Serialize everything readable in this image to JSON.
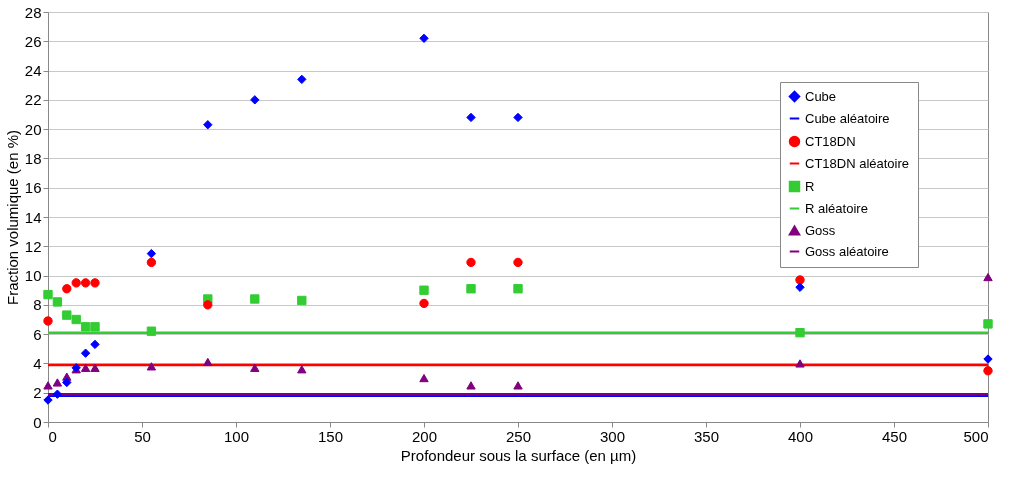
{
  "chart_data": {
    "type": "scatter",
    "xlabel": "Profondeur sous la surface (en µm)",
    "ylabel": "Fraction volumique (en %)",
    "xlim": [
      0,
      500
    ],
    "xticks": [
      0,
      50,
      100,
      150,
      200,
      250,
      300,
      350,
      400,
      450,
      500
    ],
    "ylim": [
      0,
      28
    ],
    "yticks": [
      0,
      2,
      4,
      6,
      8,
      10,
      12,
      14,
      16,
      18,
      20,
      22,
      24,
      26,
      28
    ],
    "grid": "y",
    "legend": "top right",
    "series": [
      {
        "name": "Cube",
        "type": "scatter",
        "marker": "diamond",
        "color": "#0000ff",
        "x": [
          0,
          5,
          10,
          15,
          20,
          25,
          55,
          85,
          110,
          135,
          200,
          225,
          250,
          400,
          500
        ],
        "values": [
          1.5,
          1.9,
          2.7,
          3.7,
          4.7,
          5.3,
          11.5,
          20.3,
          22.0,
          23.4,
          26.2,
          20.8,
          20.8,
          9.2,
          4.3
        ]
      },
      {
        "name": "Cube aléatoire",
        "type": "line",
        "marker": "none",
        "color": "#0000ff",
        "x": [
          0,
          500
        ],
        "values": [
          1.8,
          1.8
        ]
      },
      {
        "name": "CT18DN",
        "type": "scatter",
        "marker": "circle",
        "color": "#ff0000",
        "x": [
          0,
          10,
          15,
          20,
          25,
          55,
          85,
          200,
          225,
          250,
          400,
          500
        ],
        "values": [
          6.9,
          9.1,
          9.5,
          9.5,
          9.5,
          10.9,
          8.0,
          8.1,
          10.9,
          10.9,
          9.7,
          3.5
        ]
      },
      {
        "name": "CT18DN aléatoire",
        "type": "line",
        "marker": "none",
        "color": "#ff0000",
        "x": [
          0,
          500
        ],
        "values": [
          3.9,
          3.9
        ]
      },
      {
        "name": "R",
        "type": "scatter",
        "marker": "square",
        "color": "#33cc33",
        "x": [
          0,
          5,
          10,
          15,
          20,
          25,
          55,
          85,
          110,
          135,
          200,
          225,
          250,
          400,
          500
        ],
        "values": [
          8.7,
          8.2,
          7.3,
          7.0,
          6.5,
          6.5,
          6.2,
          8.4,
          8.4,
          8.3,
          9.0,
          9.1,
          9.1,
          6.1,
          6.7
        ]
      },
      {
        "name": "R aléatoire",
        "type": "line",
        "marker": "none",
        "color": "#33cc33",
        "x": [
          0,
          500
        ],
        "values": [
          6.1,
          6.1
        ]
      },
      {
        "name": "Goss",
        "type": "scatter",
        "marker": "triangle",
        "color": "#800080",
        "x": [
          0,
          5,
          10,
          15,
          20,
          25,
          55,
          85,
          110,
          135,
          200,
          225,
          250,
          400,
          500
        ],
        "values": [
          2.5,
          2.7,
          3.1,
          3.6,
          3.7,
          3.7,
          3.8,
          4.1,
          3.7,
          3.6,
          3.0,
          2.5,
          2.5,
          4.0,
          9.9
        ]
      },
      {
        "name": "Goss aléatoire",
        "type": "line",
        "marker": "none",
        "color": "#800080",
        "x": [
          0,
          500
        ],
        "values": [
          1.9,
          1.9
        ]
      }
    ]
  }
}
